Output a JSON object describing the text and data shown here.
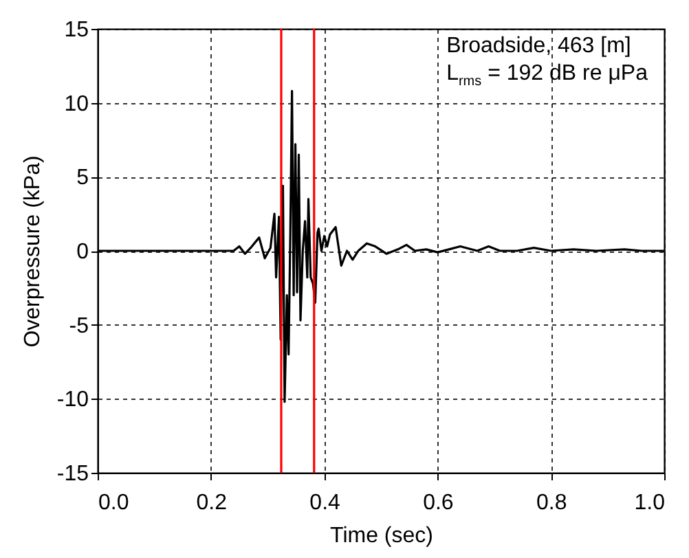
{
  "chart_data": {
    "type": "line",
    "xlabel": "Time (sec)",
    "ylabel": "Overpressure (kPa)",
    "annotations": [
      "Broadside, 463 [m]",
      "L$_{rms}$ = 192 dB re μPa"
    ],
    "xlim": [
      0,
      1
    ],
    "xticks": [
      {
        "value": 0,
        "label": "0.0"
      },
      0.2,
      0.4,
      0.6,
      0.8,
      {
        "value": 1,
        "label": "1.0"
      }
    ],
    "ylim": [
      -15,
      15
    ],
    "yticks": [
      -15,
      -10,
      -5,
      0,
      5,
      10,
      15
    ],
    "grid": true,
    "ref_lines": [
      {
        "axis": "x",
        "value": 0.324,
        "color": "#ff0000"
      },
      {
        "axis": "x",
        "value": 0.382,
        "color": "#ff0000"
      }
    ],
    "series": [
      {
        "color": "#000000",
        "x": [
          0,
          0.24,
          0.25,
          0.26,
          0.27,
          0.285,
          0.295,
          0.305,
          0.312,
          0.315,
          0.32,
          0.323,
          0.327,
          0.33,
          0.334,
          0.337,
          0.34,
          0.343,
          0.346,
          0.349,
          0.352,
          0.355,
          0.358,
          0.362,
          0.366,
          0.37,
          0.372,
          0.376,
          0.38,
          0.384,
          0.388,
          0.39,
          0.395,
          0.4,
          0.405,
          0.41,
          0.42,
          0.425,
          0.43,
          0.44,
          0.45,
          0.46,
          0.475,
          0.49,
          0.51,
          0.53,
          0.545,
          0.56,
          0.58,
          0.6,
          0.62,
          0.64,
          0.67,
          0.69,
          0.71,
          0.74,
          0.77,
          0.8,
          0.84,
          0.88,
          0.93,
          0.96,
          1
        ],
        "values": [
          0,
          0,
          0.3,
          -0.2,
          0.2,
          0.9,
          -0.5,
          0.2,
          2.5,
          -1.8,
          2.3,
          -6,
          4.4,
          -10.2,
          -3,
          -7,
          1,
          10.8,
          -3,
          7.2,
          -2.8,
          6.5,
          -4.7,
          0,
          2,
          -1.8,
          3.5,
          -1.8,
          -2.2,
          -3.5,
          1.2,
          1.5,
          0,
          1,
          0.3,
          1.1,
          1.6,
          0.3,
          -1,
          0,
          -0.6,
          0,
          0.5,
          0.3,
          -0.2,
          0.1,
          0.4,
          0,
          0.1,
          -0.1,
          0.1,
          0.3,
          0,
          0.3,
          0,
          0,
          0.2,
          0,
          0.1,
          0,
          0.1,
          0,
          0
        ]
      }
    ]
  }
}
